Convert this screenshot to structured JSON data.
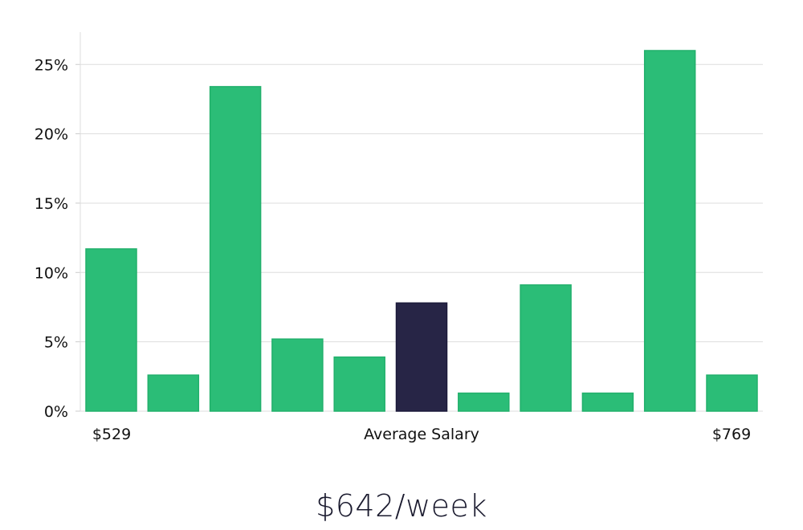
{
  "chart_data": {
    "type": "bar",
    "title": "",
    "xlabel": "Average Salary",
    "ylabel": "",
    "x_min_label": "$529",
    "x_max_label": "$769",
    "ylim": [
      0,
      27.3
    ],
    "yticks": [
      0,
      5,
      10,
      15,
      20,
      25
    ],
    "ytick_labels": [
      "0%",
      "5%",
      "10%",
      "15%",
      "20%",
      "25%"
    ],
    "grid": true,
    "values": [
      11.7,
      2.6,
      23.4,
      5.2,
      3.9,
      7.8,
      1.3,
      9.1,
      1.3,
      26.0,
      2.6
    ],
    "highlight_index": 5,
    "colors": {
      "bar": "#2bbd77",
      "highlight": "#272546",
      "grid": "#dddddd"
    }
  },
  "footer": {
    "salary": "$642/week"
  }
}
